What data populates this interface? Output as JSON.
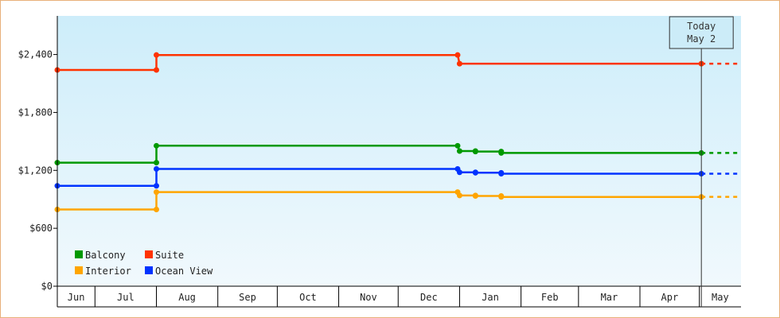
{
  "chart_data": {
    "type": "line",
    "ylim": [
      0,
      2800
    ],
    "y_ticks": [
      {
        "value": 0,
        "label": "$0"
      },
      {
        "value": 600,
        "label": "$600"
      },
      {
        "value": 1200,
        "label": "$1,200"
      },
      {
        "value": 1800,
        "label": "$1,800"
      },
      {
        "value": 2400,
        "label": "$2,400"
      }
    ],
    "x_start": "2015-06-12",
    "x_end": "2016-05-22",
    "months": [
      {
        "label": "Jun",
        "start": "2015-06-12",
        "end": "2015-07-01"
      },
      {
        "label": "Jul",
        "start": "2015-07-01",
        "end": "2015-08-01"
      },
      {
        "label": "Aug",
        "start": "2015-08-01",
        "end": "2015-09-01"
      },
      {
        "label": "Sep",
        "start": "2015-09-01",
        "end": "2015-10-01"
      },
      {
        "label": "Oct",
        "start": "2015-10-01",
        "end": "2015-11-01"
      },
      {
        "label": "Nov",
        "start": "2015-11-01",
        "end": "2015-12-01"
      },
      {
        "label": "Dec",
        "start": "2015-12-01",
        "end": "2016-01-01"
      },
      {
        "label": "Jan",
        "start": "2016-01-01",
        "end": "2016-02-01"
      },
      {
        "label": "Feb",
        "start": "2016-02-01",
        "end": "2016-03-01"
      },
      {
        "label": "Mar",
        "start": "2016-03-01",
        "end": "2016-04-01"
      },
      {
        "label": "Apr",
        "start": "2016-04-01",
        "end": "2016-05-01"
      },
      {
        "label": "May",
        "start": "2016-05-01",
        "end": "2016-05-22"
      }
    ],
    "today": {
      "date": "2016-05-02",
      "line1": "Today",
      "line2": "May 2"
    },
    "legend_position": "bottom-left",
    "series": [
      {
        "name": "Suite",
        "color": "#ff3300",
        "points": [
          [
            "2015-06-12",
            2240
          ],
          [
            "2015-08-01",
            2240
          ],
          [
            "2015-08-01",
            2395
          ],
          [
            "2015-12-31",
            2395
          ],
          [
            "2016-01-01",
            2305
          ],
          [
            "2016-05-02",
            2305
          ]
        ]
      },
      {
        "name": "Balcony",
        "color": "#009900",
        "points": [
          [
            "2015-06-12",
            1280
          ],
          [
            "2015-08-01",
            1280
          ],
          [
            "2015-08-01",
            1455
          ],
          [
            "2015-12-31",
            1455
          ],
          [
            "2016-01-01",
            1400
          ],
          [
            "2016-01-09",
            1400
          ],
          [
            "2016-01-09",
            1395
          ],
          [
            "2016-01-22",
            1395
          ],
          [
            "2016-01-22",
            1380
          ],
          [
            "2016-05-02",
            1380
          ]
        ]
      },
      {
        "name": "Ocean View",
        "color": "#0033ff",
        "points": [
          [
            "2015-06-12",
            1040
          ],
          [
            "2015-08-01",
            1040
          ],
          [
            "2015-08-01",
            1215
          ],
          [
            "2015-12-31",
            1215
          ],
          [
            "2016-01-01",
            1180
          ],
          [
            "2016-01-09",
            1180
          ],
          [
            "2016-01-09",
            1175
          ],
          [
            "2016-01-22",
            1175
          ],
          [
            "2016-01-22",
            1165
          ],
          [
            "2016-05-02",
            1165
          ]
        ]
      },
      {
        "name": "Interior",
        "color": "#ffa500",
        "points": [
          [
            "2015-06-12",
            795
          ],
          [
            "2015-08-01",
            795
          ],
          [
            "2015-08-01",
            975
          ],
          [
            "2015-12-31",
            975
          ],
          [
            "2016-01-01",
            940
          ],
          [
            "2016-01-09",
            940
          ],
          [
            "2016-01-09",
            935
          ],
          [
            "2016-01-22",
            935
          ],
          [
            "2016-01-22",
            925
          ],
          [
            "2016-05-02",
            925
          ]
        ]
      }
    ]
  }
}
